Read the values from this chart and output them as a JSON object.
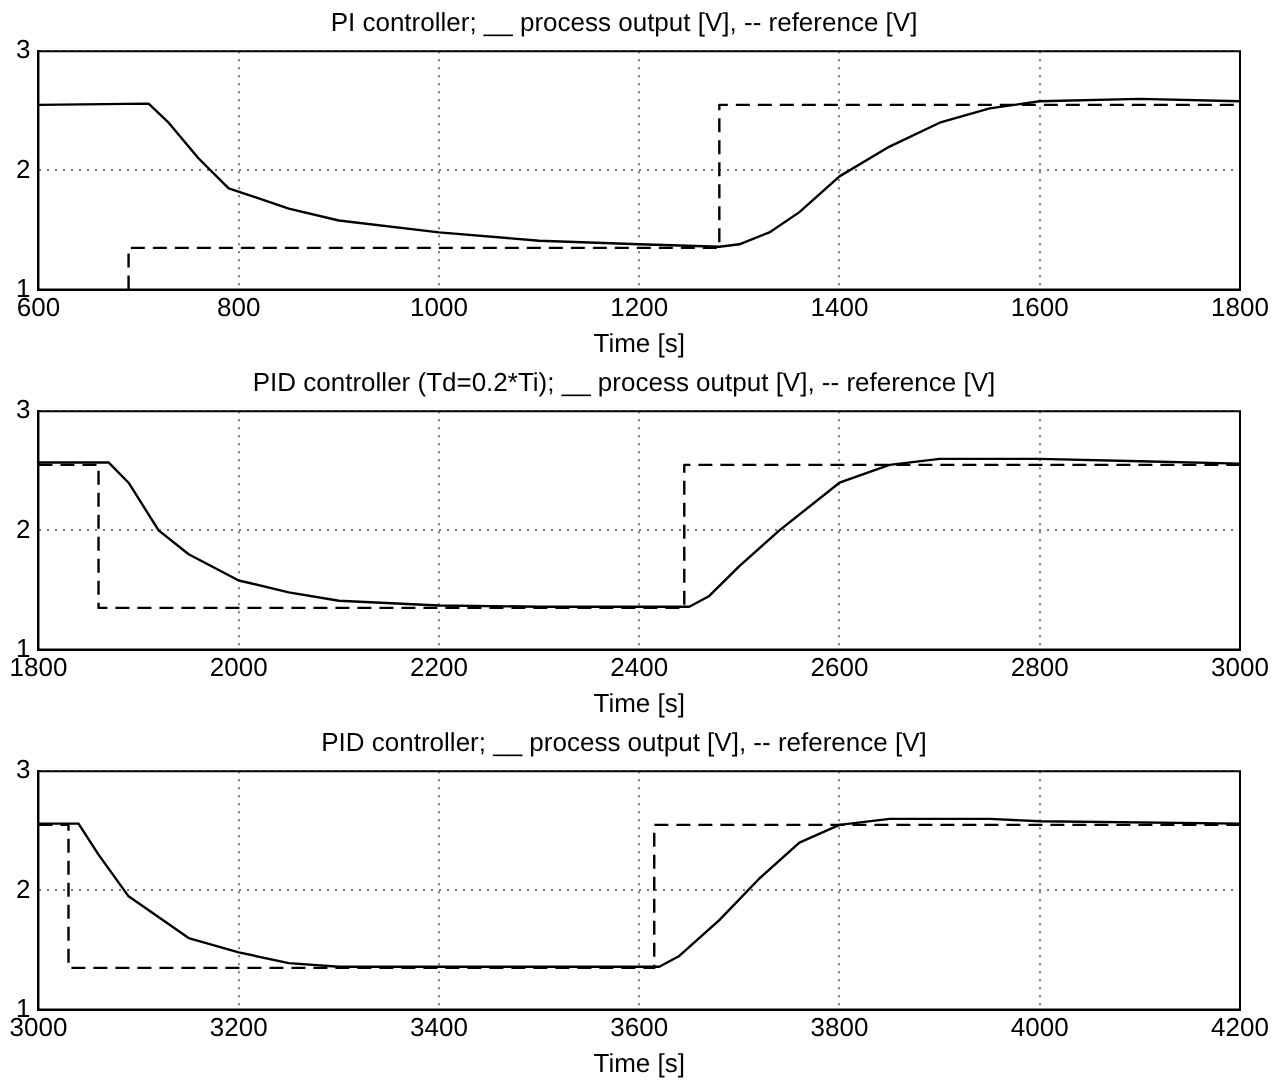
{
  "chart_data": [
    {
      "type": "line",
      "title": "PI controller; __ process output [V], -- reference [V]",
      "xlabel": "Time [s]",
      "xlim": [
        600,
        1800
      ],
      "xticks": [
        600,
        800,
        1000,
        1200,
        1400,
        1600,
        1800
      ],
      "ylim": [
        1,
        3
      ],
      "yticks": [
        1,
        2,
        3
      ],
      "grid": true,
      "legend": false,
      "marker": "none",
      "series": [
        {
          "color": "#000000",
          "line_style": "solid",
          "x": [
            600,
            710,
            730,
            760,
            790,
            850,
            900,
            1000,
            1100,
            1200,
            1280,
            1300,
            1330,
            1360,
            1400,
            1450,
            1500,
            1550,
            1600,
            1700,
            1800
          ],
          "values": [
            2.55,
            2.56,
            2.4,
            2.1,
            1.85,
            1.68,
            1.58,
            1.48,
            1.41,
            1.38,
            1.36,
            1.38,
            1.48,
            1.65,
            1.95,
            2.2,
            2.4,
            2.52,
            2.58,
            2.6,
            2.58
          ]
        },
        {
          "color": "#000000",
          "line_style": "dashed",
          "x": [
            690,
            690,
            1280,
            1280,
            1800
          ],
          "values": [
            1,
            1.35,
            1.35,
            2.55,
            2.55
          ]
        }
      ]
    },
    {
      "type": "line",
      "title": "PID controller (Td=0.2*Ti); __ process output [V], -- reference [V]",
      "xlabel": "Time [s]",
      "xlim": [
        1800,
        3000
      ],
      "xticks": [
        1800,
        2000,
        2200,
        2400,
        2600,
        2800,
        3000
      ],
      "ylim": [
        1,
        3
      ],
      "yticks": [
        1,
        2,
        3
      ],
      "grid": true,
      "legend": false,
      "marker": "none",
      "series": [
        {
          "color": "#000000",
          "line_style": "solid",
          "x": [
            1800,
            1870,
            1890,
            1920,
            1950,
            2000,
            2050,
            2100,
            2200,
            2300,
            2450,
            2470,
            2500,
            2540,
            2600,
            2650,
            2700,
            2800,
            2900,
            3000
          ],
          "values": [
            2.57,
            2.57,
            2.4,
            2.0,
            1.8,
            1.58,
            1.48,
            1.41,
            1.37,
            1.36,
            1.36,
            1.45,
            1.7,
            2.0,
            2.4,
            2.55,
            2.6,
            2.6,
            2.58,
            2.56
          ]
        },
        {
          "color": "#000000",
          "line_style": "dashed",
          "x": [
            1800,
            1860,
            1860,
            2445,
            2445,
            3000
          ],
          "values": [
            2.55,
            2.55,
            1.35,
            1.35,
            2.55,
            2.55
          ]
        }
      ]
    },
    {
      "type": "line",
      "title": "PID controller; __ process output [V], -- reference [V]",
      "xlabel": "Time [s]",
      "xlim": [
        3000,
        4200
      ],
      "xticks": [
        3000,
        3200,
        3400,
        3600,
        3800,
        4000,
        4200
      ],
      "ylim": [
        1,
        3
      ],
      "yticks": [
        1,
        2,
        3
      ],
      "grid": true,
      "legend": false,
      "marker": "none",
      "series": [
        {
          "color": "#000000",
          "line_style": "solid",
          "x": [
            3000,
            3040,
            3060,
            3090,
            3150,
            3200,
            3250,
            3300,
            3620,
            3640,
            3680,
            3720,
            3760,
            3800,
            3850,
            3950,
            4000,
            4200
          ],
          "values": [
            2.56,
            2.56,
            2.3,
            1.95,
            1.6,
            1.48,
            1.39,
            1.36,
            1.36,
            1.45,
            1.75,
            2.1,
            2.4,
            2.55,
            2.6,
            2.6,
            2.58,
            2.56
          ]
        },
        {
          "color": "#000000",
          "line_style": "dashed",
          "x": [
            3000,
            3030,
            3030,
            3615,
            3615,
            4200
          ],
          "values": [
            2.55,
            2.55,
            1.35,
            1.35,
            2.55,
            2.55
          ]
        }
      ]
    }
  ]
}
